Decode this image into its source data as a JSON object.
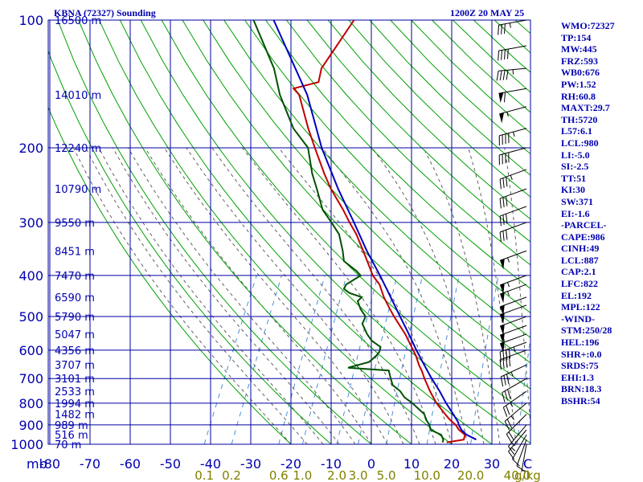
{
  "header": {
    "title": "KBNA (72327) Sounding",
    "datetime": "1200Z 20 MAY 25"
  },
  "indices": [
    "WMO:72327",
    "TP:154",
    "MW:445",
    "FRZ:593",
    "WB0:676",
    "PW:1.52",
    "RH:60.8",
    "MAXT:29.7",
    "TH:5720",
    "L57:6.1",
    "LCL:980",
    "LI:-5.0",
    "SI:-2.5",
    "TT:51",
    "KI:30",
    "SW:371",
    "EI:-1.6",
    "-PARCEL-",
    "CAPE:986",
    "CINH:49",
    "LCL:887",
    "CAP:2.1",
    "LFC:822",
    "EL:192",
    "MPL:122",
    "-WIND-",
    "STM:250/28",
    "HEL:196",
    "SHR+:0.0",
    "SRDS:75",
    "EHI:1.3",
    "BRN:18.3",
    "BSHR:54"
  ],
  "colors": {
    "grid": "#0000a0",
    "dry_adiabat": "#00a000",
    "moist_adiabat": "#606060",
    "mixing_ratio": "#4a90d9",
    "temperature": "#c00000",
    "dewpoint": "#005000",
    "parcel": "#0000c0",
    "labels": "#0000b0",
    "wind_barbs": "#000000"
  },
  "chart_data": {
    "type": "line",
    "diagram": "skew-T log-P",
    "pressure_axis": {
      "scale": "log",
      "ticks": [
        100,
        200,
        300,
        400,
        500,
        600,
        700,
        800,
        900,
        1000
      ],
      "corner_label": "mb",
      "range": [
        100,
        1000
      ]
    },
    "temperature_axis": {
      "ticks": [
        -80,
        -70,
        -60,
        -50,
        -40,
        -30,
        -20,
        -10,
        0,
        10,
        20,
        30
      ],
      "range": [
        -80,
        30
      ],
      "unit_label": "C"
    },
    "height_labels": [
      {
        "p": 100,
        "label": "16500 m"
      },
      {
        "p": 150,
        "label": "14010 m"
      },
      {
        "p": 200,
        "label": "12240 m"
      },
      {
        "p": 250,
        "label": "10790 m"
      },
      {
        "p": 300,
        "label": "9550 m"
      },
      {
        "p": 350,
        "label": "8451 m"
      },
      {
        "p": 400,
        "label": "7470 m"
      },
      {
        "p": 450,
        "label": "6590 m"
      },
      {
        "p": 500,
        "label": "5790 m"
      },
      {
        "p": 550,
        "label": "5047 m"
      },
      {
        "p": 600,
        "label": "4356 m"
      },
      {
        "p": 650,
        "label": "3707 m"
      },
      {
        "p": 700,
        "label": "3101 m"
      },
      {
        "p": 750,
        "label": "2533 m"
      },
      {
        "p": 800,
        "label": "1994 m"
      },
      {
        "p": 850,
        "label": "1482 m"
      },
      {
        "p": 900,
        "label": "989 m"
      },
      {
        "p": 950,
        "label": "516 m"
      },
      {
        "p": 1000,
        "label": "70 m"
      }
    ],
    "mixing_ratio_labels": [
      {
        "value": 0.1,
        "label": "0.1"
      },
      {
        "value": 0.2,
        "label": "0.2"
      },
      {
        "value": 0.6,
        "label": "0.6"
      },
      {
        "value": 1.0,
        "label": "1.0"
      },
      {
        "value": 2.0,
        "label": "2.0"
      },
      {
        "value": 3.0,
        "label": "3.0"
      },
      {
        "value": 5.0,
        "label": "5.0"
      },
      {
        "value": 10.0,
        "label": "10.0"
      },
      {
        "value": 20.0,
        "label": "20.0"
      },
      {
        "value": 40.0,
        "label": "40.0"
      }
    ],
    "mixing_ratio_unit": "g/kg",
    "series": [
      {
        "key": "temperature",
        "points": [
          [
            990,
            18.5
          ],
          [
            975,
            22.4
          ],
          [
            950,
            22.1
          ],
          [
            925,
            20
          ],
          [
            900,
            18.5
          ],
          [
            875,
            16.4
          ],
          [
            850,
            14.6
          ],
          [
            800,
            11
          ],
          [
            750,
            7.9
          ],
          [
            700,
            4.9
          ],
          [
            675,
            3.5
          ],
          [
            650,
            1.8
          ],
          [
            620,
            0
          ],
          [
            600,
            -1.5
          ],
          [
            550,
            -5.5
          ],
          [
            500,
            -10.5
          ],
          [
            480,
            -12.5
          ],
          [
            450,
            -15.5
          ],
          [
            420,
            -18.2
          ],
          [
            400,
            -21
          ],
          [
            370,
            -24.2
          ],
          [
            350,
            -26.5
          ],
          [
            320,
            -30.3
          ],
          [
            300,
            -33.5
          ],
          [
            280,
            -36.7
          ],
          [
            250,
            -42.4
          ],
          [
            230,
            -46
          ],
          [
            200,
            -51.6
          ],
          [
            180,
            -55.7
          ],
          [
            150,
            -62.2
          ],
          [
            145,
            -64.4
          ],
          [
            140,
            -59
          ],
          [
            130,
            -60
          ],
          [
            100,
            -58
          ]
        ]
      },
      {
        "key": "dewpoint",
        "points": [
          [
            990,
            17.5
          ],
          [
            975,
            17.3
          ],
          [
            950,
            16.2
          ],
          [
            925,
            12.9
          ],
          [
            900,
            12
          ],
          [
            875,
            10.5
          ],
          [
            850,
            9.4
          ],
          [
            800,
            5
          ],
          [
            775,
            2.3
          ],
          [
            750,
            0.5
          ],
          [
            725,
            -2.2
          ],
          [
            700,
            -3.5
          ],
          [
            680,
            -4.5
          ],
          [
            670,
            -5
          ],
          [
            660,
            -15.5
          ],
          [
            640,
            -11
          ],
          [
            620,
            -10
          ],
          [
            605,
            -9.7
          ],
          [
            590,
            -10
          ],
          [
            570,
            -13
          ],
          [
            550,
            -15
          ],
          [
            520,
            -17.5
          ],
          [
            500,
            -17.6
          ],
          [
            480,
            -19.8
          ],
          [
            460,
            -21.5
          ],
          [
            450,
            -21
          ],
          [
            440,
            -24.6
          ],
          [
            430,
            -26.5
          ],
          [
            420,
            -26.5
          ],
          [
            400,
            -24
          ],
          [
            390,
            -25.7
          ],
          [
            370,
            -30
          ],
          [
            350,
            -31.6
          ],
          [
            320,
            -34.6
          ],
          [
            300,
            -38
          ],
          [
            280,
            -41.8
          ],
          [
            250,
            -45.9
          ],
          [
            230,
            -49
          ],
          [
            200,
            -53.3
          ],
          [
            180,
            -59.4
          ],
          [
            150,
            -67
          ],
          [
            130,
            -71.8
          ],
          [
            100,
            -83
          ]
        ]
      },
      {
        "key": "parcel",
        "points": [
          [
            975,
            25.5
          ],
          [
            950,
            22.5
          ],
          [
            925,
            20.6
          ],
          [
            900,
            19.3
          ],
          [
            887,
            18.8
          ],
          [
            850,
            16.6
          ],
          [
            800,
            13.4
          ],
          [
            750,
            10.3
          ],
          [
            700,
            6.7
          ],
          [
            650,
            3.1
          ],
          [
            600,
            -0.7
          ],
          [
            550,
            -4.6
          ],
          [
            500,
            -9
          ],
          [
            450,
            -13.8
          ],
          [
            400,
            -19.2
          ],
          [
            350,
            -25.6
          ],
          [
            300,
            -32.4
          ],
          [
            250,
            -40.6
          ],
          [
            200,
            -49.9
          ],
          [
            150,
            -60.2
          ],
          [
            100,
            -78
          ]
        ]
      }
    ],
    "wind_profile": [
      {
        "p": 100,
        "dir": 260,
        "spd": 35
      },
      {
        "p": 115,
        "dir": 260,
        "spd": 40
      },
      {
        "p": 130,
        "dir": 265,
        "spd": 45
      },
      {
        "p": 145,
        "dir": 260,
        "spd": 60
      },
      {
        "p": 160,
        "dir": 255,
        "spd": 55
      },
      {
        "p": 180,
        "dir": 255,
        "spd": 45
      },
      {
        "p": 200,
        "dir": 255,
        "spd": 40
      },
      {
        "p": 225,
        "dir": 250,
        "spd": 35
      },
      {
        "p": 250,
        "dir": 250,
        "spd": 30
      },
      {
        "p": 275,
        "dir": 250,
        "spd": 30
      },
      {
        "p": 300,
        "dir": 250,
        "spd": 30
      },
      {
        "p": 350,
        "dir": 250,
        "spd": 55
      },
      {
        "p": 400,
        "dir": 250,
        "spd": 55
      },
      {
        "p": 420,
        "dir": 250,
        "spd": 55
      },
      {
        "p": 450,
        "dir": 250,
        "spd": 50
      },
      {
        "p": 470,
        "dir": 250,
        "spd": 50
      },
      {
        "p": 500,
        "dir": 250,
        "spd": 50
      },
      {
        "p": 525,
        "dir": 250,
        "spd": 50
      },
      {
        "p": 550,
        "dir": 250,
        "spd": 50
      },
      {
        "p": 575,
        "dir": 250,
        "spd": 45
      },
      {
        "p": 600,
        "dir": 250,
        "spd": 40
      },
      {
        "p": 650,
        "dir": 245,
        "spd": 35
      },
      {
        "p": 700,
        "dir": 240,
        "spd": 30
      },
      {
        "p": 750,
        "dir": 235,
        "spd": 25
      },
      {
        "p": 800,
        "dir": 230,
        "spd": 25
      },
      {
        "p": 850,
        "dir": 225,
        "spd": 20
      },
      {
        "p": 900,
        "dir": 220,
        "spd": 15
      },
      {
        "p": 925,
        "dir": 220,
        "spd": 15
      },
      {
        "p": 950,
        "dir": 210,
        "spd": 10
      },
      {
        "p": 975,
        "dir": 200,
        "spd": 10
      },
      {
        "p": 1000,
        "dir": 190,
        "spd": 5
      }
    ]
  }
}
